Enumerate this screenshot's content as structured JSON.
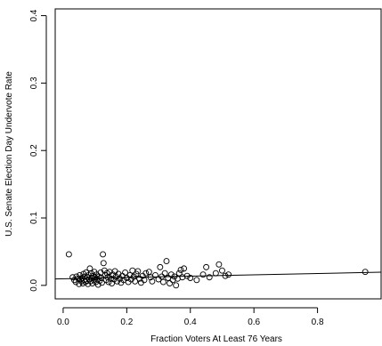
{
  "chart_data": {
    "type": "scatter",
    "xlabel": "Fraction Voters At Least 76 Years",
    "ylabel": "U.S. Senate Election Day Undervote Rate",
    "xlim": [
      -0.025,
      1.0
    ],
    "ylim": [
      -0.02,
      0.41
    ],
    "x_ticks": [
      0.0,
      0.2,
      0.4,
      0.6,
      0.8
    ],
    "x_tick_labels": [
      "0.0",
      "0.2",
      "0.4",
      "0.6",
      "0.8"
    ],
    "y_ticks": [
      0.0,
      0.1,
      0.2,
      0.3,
      0.4
    ],
    "y_tick_labels": [
      "0.0",
      "0.1",
      "0.2",
      "0.3",
      "0.4"
    ],
    "grid": false,
    "legend": "none",
    "marker": "open-circle",
    "regression_line": {
      "x": [
        -0.025,
        1.0
      ],
      "y": [
        0.0095,
        0.0195
      ]
    },
    "points": [
      [
        0.018,
        0.046
      ],
      [
        0.03,
        0.012
      ],
      [
        0.035,
        0.008
      ],
      [
        0.04,
        0.005
      ],
      [
        0.042,
        0.013
      ],
      [
        0.048,
        0.01
      ],
      [
        0.05,
        0.002
      ],
      [
        0.052,
        0.015
      ],
      [
        0.055,
        0.009
      ],
      [
        0.058,
        0.006
      ],
      [
        0.06,
        0.011
      ],
      [
        0.062,
        0.003
      ],
      [
        0.064,
        0.017
      ],
      [
        0.066,
        0.008
      ],
      [
        0.068,
        0.013
      ],
      [
        0.07,
        0.005
      ],
      [
        0.072,
        0.019
      ],
      [
        0.074,
        0.007
      ],
      [
        0.076,
        0.012
      ],
      [
        0.078,
        0.002
      ],
      [
        0.08,
        0.015
      ],
      [
        0.082,
        0.009
      ],
      [
        0.084,
        0.025
      ],
      [
        0.086,
        0.006
      ],
      [
        0.088,
        0.018
      ],
      [
        0.09,
        0.011
      ],
      [
        0.092,
        0.003
      ],
      [
        0.094,
        0.014
      ],
      [
        0.096,
        0.008
      ],
      [
        0.098,
        0.02
      ],
      [
        0.1,
        0.012
      ],
      [
        0.103,
        0.005
      ],
      [
        0.105,
        0.016
      ],
      [
        0.108,
        0.009
      ],
      [
        0.11,
        0.001
      ],
      [
        0.112,
        0.013
      ],
      [
        0.115,
        0.007
      ],
      [
        0.118,
        0.019
      ],
      [
        0.12,
        0.011
      ],
      [
        0.122,
        0.004
      ],
      [
        0.125,
        0.046
      ],
      [
        0.127,
        0.033
      ],
      [
        0.13,
        0.022
      ],
      [
        0.132,
        0.015
      ],
      [
        0.135,
        0.008
      ],
      [
        0.138,
        0.018
      ],
      [
        0.14,
        0.012
      ],
      [
        0.143,
        0.005
      ],
      [
        0.146,
        0.02
      ],
      [
        0.15,
        0.01
      ],
      [
        0.153,
        0.003
      ],
      [
        0.156,
        0.016
      ],
      [
        0.16,
        0.009
      ],
      [
        0.163,
        0.021
      ],
      [
        0.166,
        0.013
      ],
      [
        0.17,
        0.006
      ],
      [
        0.174,
        0.017
      ],
      [
        0.178,
        0.01
      ],
      [
        0.182,
        0.004
      ],
      [
        0.186,
        0.014
      ],
      [
        0.19,
        0.008
      ],
      [
        0.195,
        0.019
      ],
      [
        0.2,
        0.011
      ],
      [
        0.205,
        0.005
      ],
      [
        0.21,
        0.015
      ],
      [
        0.214,
        0.009
      ],
      [
        0.218,
        0.022
      ],
      [
        0.222,
        0.013
      ],
      [
        0.226,
        0.006
      ],
      [
        0.23,
        0.017
      ],
      [
        0.235,
        0.021
      ],
      [
        0.24,
        0.01
      ],
      [
        0.245,
        0.004
      ],
      [
        0.25,
        0.014
      ],
      [
        0.255,
        0.008
      ],
      [
        0.26,
        0.018
      ],
      [
        0.27,
        0.02
      ],
      [
        0.275,
        0.012
      ],
      [
        0.28,
        0.006
      ],
      [
        0.29,
        0.015
      ],
      [
        0.3,
        0.009
      ],
      [
        0.305,
        0.027
      ],
      [
        0.31,
        0.013
      ],
      [
        0.315,
        0.005
      ],
      [
        0.32,
        0.018
      ],
      [
        0.325,
        0.036
      ],
      [
        0.33,
        0.011
      ],
      [
        0.335,
        0.003
      ],
      [
        0.34,
        0.016
      ],
      [
        0.345,
        0.008
      ],
      [
        0.35,
        0.013
      ],
      [
        0.355,
        0.0
      ],
      [
        0.36,
        0.01
      ],
      [
        0.365,
        0.018
      ],
      [
        0.37,
        0.023
      ],
      [
        0.375,
        0.012
      ],
      [
        0.38,
        0.025
      ],
      [
        0.39,
        0.014
      ],
      [
        0.4,
        0.011
      ],
      [
        0.42,
        0.008
      ],
      [
        0.44,
        0.016
      ],
      [
        0.45,
        0.027
      ],
      [
        0.46,
        0.012
      ],
      [
        0.48,
        0.018
      ],
      [
        0.49,
        0.031
      ],
      [
        0.5,
        0.022
      ],
      [
        0.51,
        0.014
      ],
      [
        0.52,
        0.016
      ],
      [
        0.95,
        0.02
      ]
    ]
  }
}
